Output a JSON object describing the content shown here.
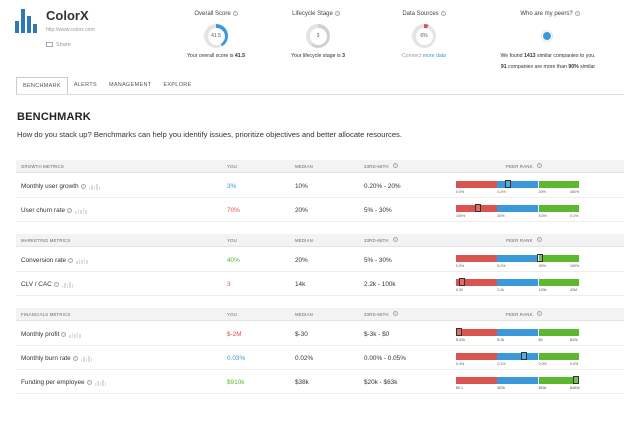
{
  "company": {
    "name": "ColorX",
    "url": "http://www.colorx.com",
    "share_label": "Share"
  },
  "metrics": {
    "overall": {
      "title": "Overall Score",
      "value": "41.5",
      "progress": 0.415,
      "caption_prefix": "Your overall score is ",
      "caption_value": "41.5"
    },
    "lifecycle": {
      "title": "Lifecycle Stage",
      "value": "3",
      "progress": 0.6,
      "caption_prefix": "Your lifecycle stage is ",
      "caption_value": "3"
    },
    "sources": {
      "title": "Data Sources",
      "value": "6%",
      "progress": 0.06,
      "caption_prefix": "Connect ",
      "caption_value": "more data"
    },
    "peers": {
      "title": "Who are my peers?",
      "line1_prefix": "We found ",
      "line1_value": "1413",
      "line1_suffix": " similar companies to you.",
      "line2_value": "91",
      "line2_mid": " companies are more than ",
      "line2_pct": "90%",
      "line2_suffix": " similar"
    }
  },
  "tabs": [
    "BENCHMARK",
    "ALERTS",
    "MANAGEMENT",
    "EXPLORE"
  ],
  "benchmark": {
    "title": "BENCHMARK",
    "subtitle": "How do you stack up? Benchmarks can help you identify issues, prioritize objectives and better allocate resources."
  },
  "columns": {
    "you": "YOU",
    "median": "MEDIAN",
    "range": "33RD-66TH",
    "peer": "PEER RANK"
  },
  "colors": {
    "red": "#d9534f",
    "blue": "#3a9ad9",
    "green": "#5cb82e",
    "brand": "#2f78b8"
  },
  "sections": [
    {
      "title": "GROWTH METRICS",
      "rows": [
        {
          "name": "Monthly user growth",
          "you": "3%",
          "you_color": "blue",
          "median": "10%",
          "range": "0.20% - 20%",
          "rank": 0.42,
          "ticks": [
            "0.0%",
            "0.2%",
            "20%",
            "400%"
          ]
        },
        {
          "name": "User churn rate",
          "you": "70%",
          "you_color": "red",
          "median": "20%",
          "range": "5% - 30%",
          "rank": 0.18,
          "ticks": [
            "100%",
            "30%",
            "5.0%",
            "0.1%"
          ]
        }
      ]
    },
    {
      "title": "MARKETING METRICS",
      "rows": [
        {
          "name": "Conversion rate",
          "you": "40%",
          "you_color": "green",
          "median": "20%",
          "range": "5% - 30%",
          "rank": 0.68,
          "ticks": [
            "0.0%",
            "5.0%",
            "30%",
            "100%"
          ]
        },
        {
          "name": "CLV / CAC",
          "you": "3",
          "you_color": "red",
          "median": "14k",
          "range": "2.2k - 100k",
          "rank": 0.05,
          "ticks": [
            "0.00",
            "2.2k",
            "100k",
            "42M"
          ]
        }
      ]
    },
    {
      "title": "FINANCIALS METRICS",
      "rows": [
        {
          "name": "Monthly profit",
          "you": "$-2M",
          "you_color": "red",
          "median": "$-30",
          "range": "$-3k - $0",
          "rank": 0.02,
          "ticks": [
            "$-92k",
            "$-3k",
            "$0",
            "$32k"
          ]
        },
        {
          "name": "Monthly burn rate",
          "you": "0.03%",
          "you_color": "blue",
          "median": "0.02%",
          "range": "0.00% - 0.05%",
          "rank": 0.55,
          "ticks": [
            "0.4%",
            "0.1%",
            "0.0%",
            "0.0%"
          ]
        },
        {
          "name": "Funding per employee",
          "you": "$910k",
          "you_color": "green",
          "median": "$38k",
          "range": "$20k - $63k",
          "rank": 0.97,
          "ticks": [
            "$0.1",
            "$20k",
            "$63k",
            "$462k"
          ]
        }
      ]
    }
  ]
}
